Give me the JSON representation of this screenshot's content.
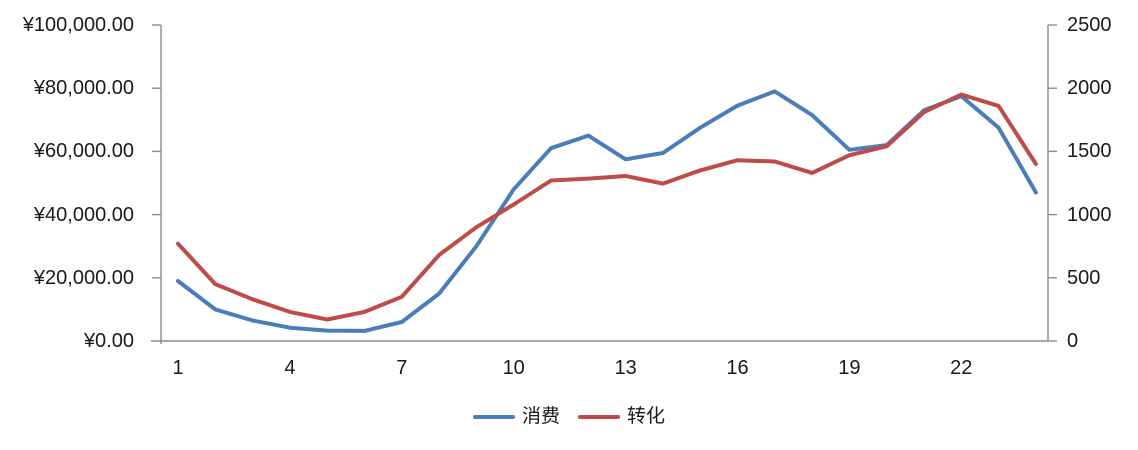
{
  "chart_data": {
    "type": "line",
    "title": "",
    "x": [
      1,
      2,
      3,
      4,
      5,
      6,
      7,
      8,
      9,
      10,
      11,
      12,
      13,
      14,
      15,
      16,
      17,
      18,
      19,
      20,
      21,
      22,
      23,
      24
    ],
    "series": [
      {
        "name": "消费",
        "axis": "left",
        "color": "#4A7EBB",
        "values": [
          19000,
          10000,
          6500,
          4200,
          3300,
          3200,
          6000,
          15000,
          30000,
          48000,
          61000,
          65000,
          57500,
          59500,
          67500,
          74500,
          79000,
          71500,
          60500,
          62000,
          73000,
          77500,
          67500,
          47000
        ]
      },
      {
        "name": "转化",
        "axis": "right",
        "color": "#BE4B48",
        "values": [
          770,
          450,
          330,
          230,
          170,
          230,
          350,
          680,
          900,
          1080,
          1270,
          1285,
          1305,
          1245,
          1350,
          1430,
          1420,
          1330,
          1470,
          1540,
          1810,
          1950,
          1860,
          1400
        ]
      }
    ],
    "left_axis": {
      "min": 0,
      "max": 100000,
      "tick_labels": [
        "¥0.00",
        "¥20,000.00",
        "¥40,000.00",
        "¥60,000.00",
        "¥80,000.00",
        "¥100,000.00"
      ]
    },
    "right_axis": {
      "min": 0,
      "max": 2500,
      "tick_labels": [
        "0",
        "500",
        "1000",
        "1500",
        "2000",
        "2500"
      ]
    },
    "x_axis": {
      "tick_labels": [
        "1",
        "4",
        "7",
        "10",
        "13",
        "16",
        "19",
        "22"
      ],
      "tick_positions": [
        1,
        4,
        7,
        10,
        13,
        16,
        19,
        22
      ]
    },
    "grid": false,
    "legend_position": "bottom",
    "colors": {
      "axis_line": "#8C8C8C",
      "text": "#1a1a1a",
      "background": "#FFFFFF"
    }
  }
}
